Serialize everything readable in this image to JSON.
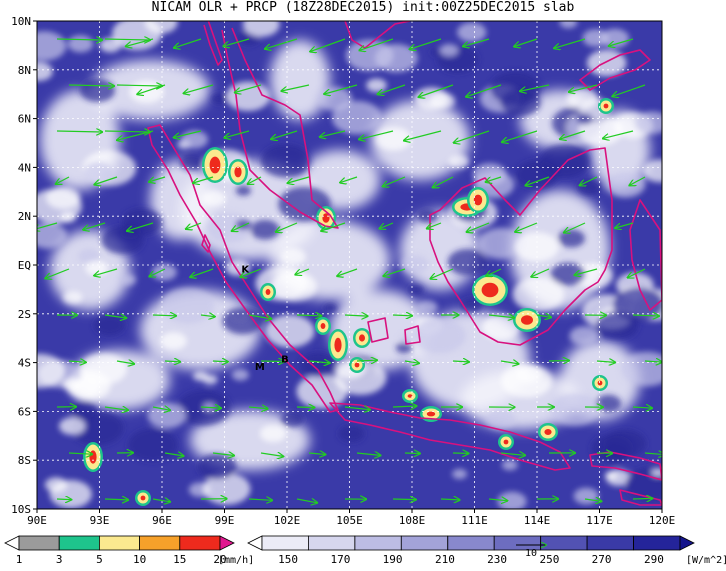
{
  "title": "NICAM OLR + PRCP (18Z28DEC2015) init:00Z25DEC2015 slab",
  "map": {
    "lon_range": [
      90,
      120
    ],
    "lat_range": [
      -10,
      10
    ],
    "x_ticks": [
      "90E",
      "93E",
      "96E",
      "99E",
      "102E",
      "105E",
      "108E",
      "111E",
      "114E",
      "117E",
      "120E"
    ],
    "y_ticks": [
      "10N",
      "8N",
      "6N",
      "4N",
      "2N",
      "EQ",
      "2S",
      "4S",
      "6S",
      "8S",
      "10S"
    ],
    "annotations": [
      {
        "text": "K",
        "lon": 100.0,
        "lat": -0.3
      },
      {
        "text": "M",
        "lon": 100.7,
        "lat": -4.3
      },
      {
        "text": "B",
        "lon": 101.9,
        "lat": -4.0
      }
    ],
    "colors": {
      "ocean_base": "#3a3aa8",
      "cloud": "#f4f4fb",
      "coast": "#d8117f",
      "wind": "#22cc22",
      "grid": "#ffffff"
    }
  },
  "precip_colorbar": {
    "labels": [
      "1",
      "3",
      "5",
      "10",
      "15",
      "20"
    ],
    "unit": "[mm/h]",
    "colors": [
      "#ffffff",
      "#9b9b9b",
      "#1ec48c",
      "#fbe98f",
      "#f6a12a",
      "#ee2a1d",
      "#e0178f"
    ]
  },
  "olr_colorbar": {
    "labels": [
      "150",
      "170",
      "190",
      "210",
      "230",
      "250",
      "270",
      "290"
    ],
    "unit": "[W/m^2]",
    "vector_ref": "10",
    "colors": [
      "#ffffff",
      "#ececf7",
      "#d6d6ee",
      "#bdbde4",
      "#a3a3d9",
      "#8888cd",
      "#6d6dc0",
      "#5252b3",
      "#3a3aa6",
      "#24249a",
      "#15158c"
    ]
  }
}
